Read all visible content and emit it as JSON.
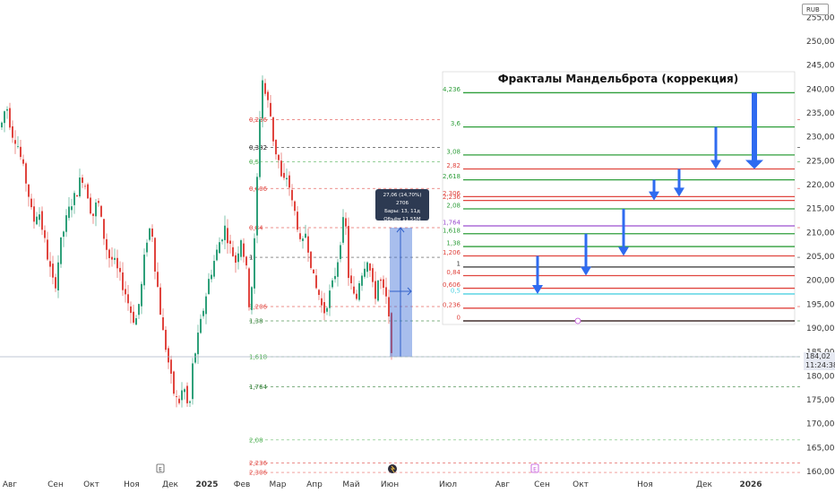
{
  "currency": "RUB",
  "last_price": "184,02",
  "countdown": "11:24:38",
  "chart_data": {
    "type": "candlestick",
    "title": "",
    "xlabel": "",
    "ylabel": "",
    "ylim": [
      158,
      258
    ],
    "y_ticks": [
      "160,00",
      "165,00",
      "170,00",
      "175,00",
      "180,00",
      "185,00",
      "190,00",
      "195,00",
      "200,00",
      "205,00",
      "210,00",
      "215,00",
      "220,00",
      "225,00",
      "230,00",
      "235,00",
      "240,00",
      "245,00",
      "250,00",
      "255,00"
    ],
    "y_tick_values": [
      160,
      165,
      170,
      175,
      180,
      185,
      190,
      195,
      200,
      205,
      210,
      215,
      220,
      225,
      230,
      235,
      240,
      245,
      250,
      255
    ],
    "x_labels": [
      "Авг",
      "Сен",
      "Окт",
      "Ноя",
      "Дек",
      "2025",
      "Фев",
      "Мар",
      "Апр",
      "Май",
      "Июн",
      "Июл",
      "Авг",
      "Сен",
      "Окт",
      "Ноя",
      "Дек",
      "2026"
    ],
    "price_path": [
      [
        0,
        232
      ],
      [
        6,
        237
      ],
      [
        12,
        231
      ],
      [
        18,
        229
      ],
      [
        24,
        224
      ],
      [
        30,
        219
      ],
      [
        36,
        212
      ],
      [
        42,
        215
      ],
      [
        48,
        209
      ],
      [
        54,
        203
      ],
      [
        60,
        198
      ],
      [
        66,
        207
      ],
      [
        72,
        212
      ],
      [
        78,
        216
      ],
      [
        84,
        218
      ],
      [
        90,
        222
      ],
      [
        96,
        219
      ],
      [
        102,
        213
      ],
      [
        108,
        217
      ],
      [
        114,
        210
      ],
      [
        120,
        205
      ],
      [
        126,
        204
      ],
      [
        132,
        201
      ],
      [
        138,
        198
      ],
      [
        144,
        194
      ],
      [
        150,
        191
      ],
      [
        156,
        197
      ],
      [
        162,
        208
      ],
      [
        168,
        212
      ],
      [
        172,
        203
      ],
      [
        176,
        197
      ],
      [
        180,
        190
      ],
      [
        186,
        184
      ],
      [
        192,
        177
      ],
      [
        198,
        174
      ],
      [
        204,
        178
      ],
      [
        210,
        172
      ],
      [
        214,
        182
      ],
      [
        220,
        188
      ],
      [
        226,
        194
      ],
      [
        232,
        200
      ],
      [
        238,
        204
      ],
      [
        244,
        208
      ],
      [
        250,
        211
      ],
      [
        256,
        207
      ],
      [
        262,
        204
      ],
      [
        268,
        209
      ],
      [
        274,
        202
      ],
      [
        278,
        193
      ],
      [
        283,
        208
      ],
      [
        288,
        230
      ],
      [
        291,
        243
      ],
      [
        295,
        239
      ],
      [
        300,
        236
      ],
      [
        305,
        228
      ],
      [
        310,
        225
      ],
      [
        314,
        220
      ],
      [
        320,
        222
      ],
      [
        325,
        216
      ],
      [
        330,
        213
      ],
      [
        335,
        206
      ],
      [
        340,
        210
      ],
      [
        345,
        205
      ],
      [
        350,
        199
      ],
      [
        355,
        197
      ],
      [
        360,
        193
      ],
      [
        365,
        196
      ],
      [
        370,
        199
      ],
      [
        375,
        203
      ],
      [
        380,
        210
      ],
      [
        384,
        214
      ],
      [
        388,
        201
      ],
      [
        392,
        198
      ],
      [
        396,
        195
      ],
      [
        400,
        200
      ],
      [
        405,
        203
      ],
      [
        410,
        205
      ],
      [
        414,
        199
      ],
      [
        418,
        197
      ],
      [
        422,
        201
      ],
      [
        426,
        198
      ],
      [
        430,
        196
      ],
      [
        434,
        190
      ],
      [
        437,
        184
      ]
    ],
    "fib_levels": [
      {
        "label": "0,236",
        "value": 233.6,
        "color": "#e0453f"
      },
      {
        "label": "0,382",
        "value": 227.8,
        "color": "#222222"
      },
      {
        "label": "0,5",
        "value": 224.8,
        "color": "#4caf50"
      },
      {
        "label": "0,606",
        "value": 219.2,
        "color": "#e0453f"
      },
      {
        "label": "0,84",
        "value": 211.0,
        "color": "#e0453f"
      },
      {
        "label": "1",
        "value": 204.8,
        "color": "#222222"
      },
      {
        "label": "1,206",
        "value": 194.5,
        "color": "#e0453f"
      },
      {
        "label": "1,38",
        "value": 191.5,
        "color": "#2e7d32"
      },
      {
        "label": "1,618",
        "value": 184.0,
        "color": "#4caf50"
      },
      {
        "label": "1,764",
        "value": 177.7,
        "color": "#2e7d32"
      },
      {
        "label": "2,08",
        "value": 166.6,
        "color": "#4caf50"
      },
      {
        "label": "2,236",
        "value": 161.8,
        "color": "#e0453f"
      },
      {
        "label": "2,306",
        "value": 159.8,
        "color": "#e0453f"
      }
    ],
    "measure": {
      "line1": "27,06 (14,70%) 2706",
      "line2": "Бары: 13, 11д",
      "line3": "Объём 11,55M",
      "from": 184.0,
      "to": 211.0
    },
    "event_markers": [
      "E",
      "E"
    ],
    "inset": {
      "title": "Фракталы Мандельброта (коррекция)",
      "levels": [
        {
          "label": "4,236",
          "value": 4.236,
          "color": "#2e9e3a"
        },
        {
          "label": "3,6",
          "value": 3.6,
          "color": "#2e9e3a"
        },
        {
          "label": "3,08",
          "value": 3.08,
          "color": "#2e9e3a"
        },
        {
          "label": "2,82",
          "value": 2.82,
          "color": "#e0453f"
        },
        {
          "label": "2,618",
          "value": 2.618,
          "color": "#2e9e3a"
        },
        {
          "label": "2,306",
          "value": 2.306,
          "color": "#e0453f"
        },
        {
          "label": "2,236",
          "value": 2.236,
          "color": "#e0453f"
        },
        {
          "label": "2,08",
          "value": 2.08,
          "color": "#2e9e3a"
        },
        {
          "label": "1,764",
          "value": 1.764,
          "color": "#9c4fcf"
        },
        {
          "label": "1,618",
          "value": 1.618,
          "color": "#2e9e3a"
        },
        {
          "label": "1,38",
          "value": 1.38,
          "color": "#2e9e3a"
        },
        {
          "label": "1,206",
          "value": 1.206,
          "color": "#e0453f"
        },
        {
          "label": "1",
          "value": 1,
          "color": "#333333"
        },
        {
          "label": "0,84",
          "value": 0.84,
          "color": "#e0453f"
        },
        {
          "label": "0,606",
          "value": 0.606,
          "color": "#e0453f"
        },
        {
          "label": "0,5",
          "value": 0.5,
          "color": "#4dd0e1"
        },
        {
          "label": "0,236",
          "value": 0.236,
          "color": "#e0453f"
        },
        {
          "label": "0",
          "value": 0,
          "color": "#e0453f"
        }
      ],
      "arrows": [
        {
          "from": 1.206,
          "to": 0.5
        },
        {
          "from": 1.618,
          "to": 0.84
        },
        {
          "from": 2.08,
          "to": 1.206
        },
        {
          "from": 2.618,
          "to": 2.236
        },
        {
          "from": 2.82,
          "to": 2.306
        },
        {
          "from": 3.6,
          "to": 2.82
        },
        {
          "from": 4.236,
          "to": 2.82
        }
      ]
    }
  }
}
